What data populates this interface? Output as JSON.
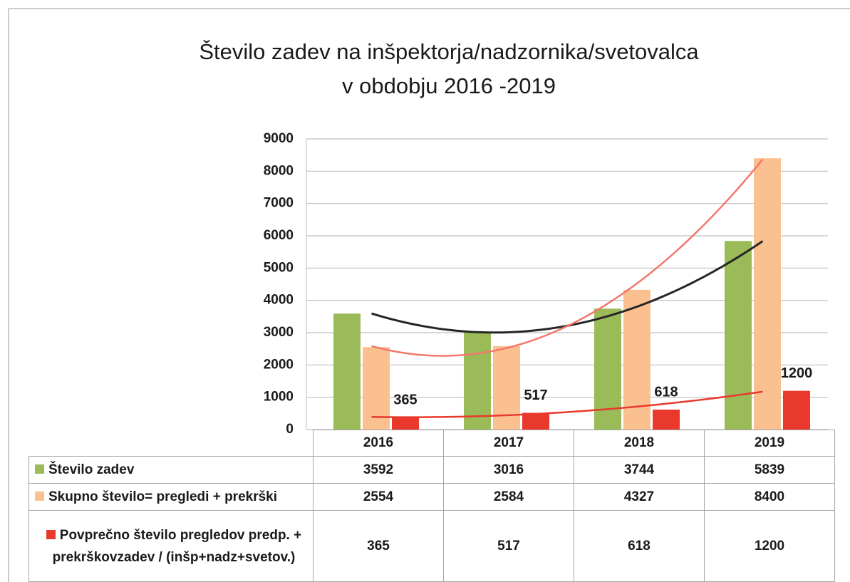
{
  "chart_data": {
    "type": "bar",
    "title": [
      "Število zadev na inšpektorja/nadzornika/svetovalca",
      "v obdobju  2016 -2019"
    ],
    "categories": [
      "2016",
      "2017",
      "2018",
      "2019"
    ],
    "series": [
      {
        "name": "Število zadev",
        "color": "#9bbb59",
        "values": [
          3592,
          3016,
          3744,
          5839
        ],
        "trendline": "polynomial",
        "trendline_color": "#262626"
      },
      {
        "name": "Skupno število= pregledi + prekrški",
        "color": "#fac090",
        "values": [
          2554,
          2584,
          4327,
          8400
        ],
        "trendline": "polynomial",
        "trendline_color": "#f2786a"
      },
      {
        "name": "Povprečno število pregledov predp. + prekrškovzadev / (inšp+nadz+svetov.)",
        "color": "#e8392c",
        "values": [
          365,
          517,
          618,
          1200
        ],
        "trendline": "polynomial",
        "trendline_color": "#e8392c",
        "data_labels": true
      }
    ],
    "ylim": [
      0,
      9000
    ],
    "yticks": [
      0,
      1000,
      2000,
      3000,
      4000,
      5000,
      6000,
      7000,
      8000,
      9000
    ],
    "grid": true,
    "data_table": true
  }
}
